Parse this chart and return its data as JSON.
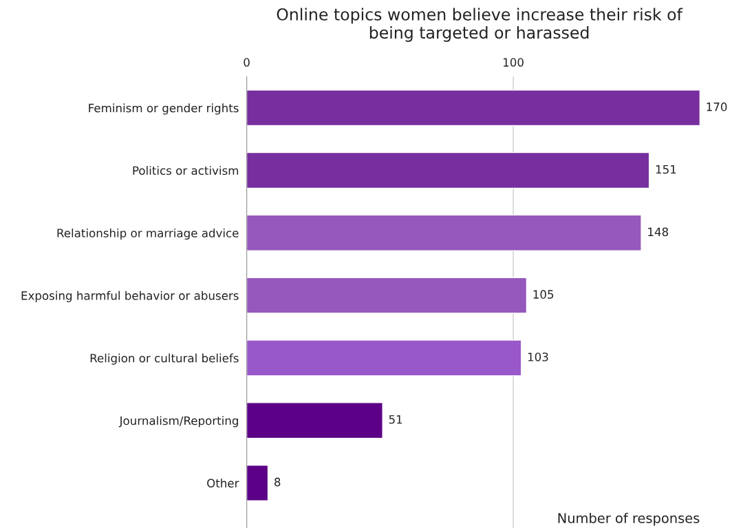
{
  "chart_data": {
    "type": "bar",
    "orientation": "horizontal",
    "title": "Online topics women believe increase their risk of\nbeing targeted or harassed",
    "xlabel": "Number of responses",
    "categories": [
      "Feminism or gender rights",
      "Politics or activism",
      "Relationship or marriage advice",
      "Exposing harmful behavior or abusers",
      "Religion or cultural beliefs",
      "Journalism/Reporting",
      "Other"
    ],
    "values": [
      170,
      151,
      148,
      105,
      103,
      51,
      8
    ],
    "colors": [
      "#772e9e",
      "#772e9e",
      "#9558bd",
      "#9558bd",
      "#9858c9",
      "#5c0087",
      "#5c0087"
    ],
    "data_labels": true,
    "xlim": [
      0,
      170
    ],
    "xticks": [
      0,
      100
    ],
    "grid": "x",
    "legend": false
  }
}
